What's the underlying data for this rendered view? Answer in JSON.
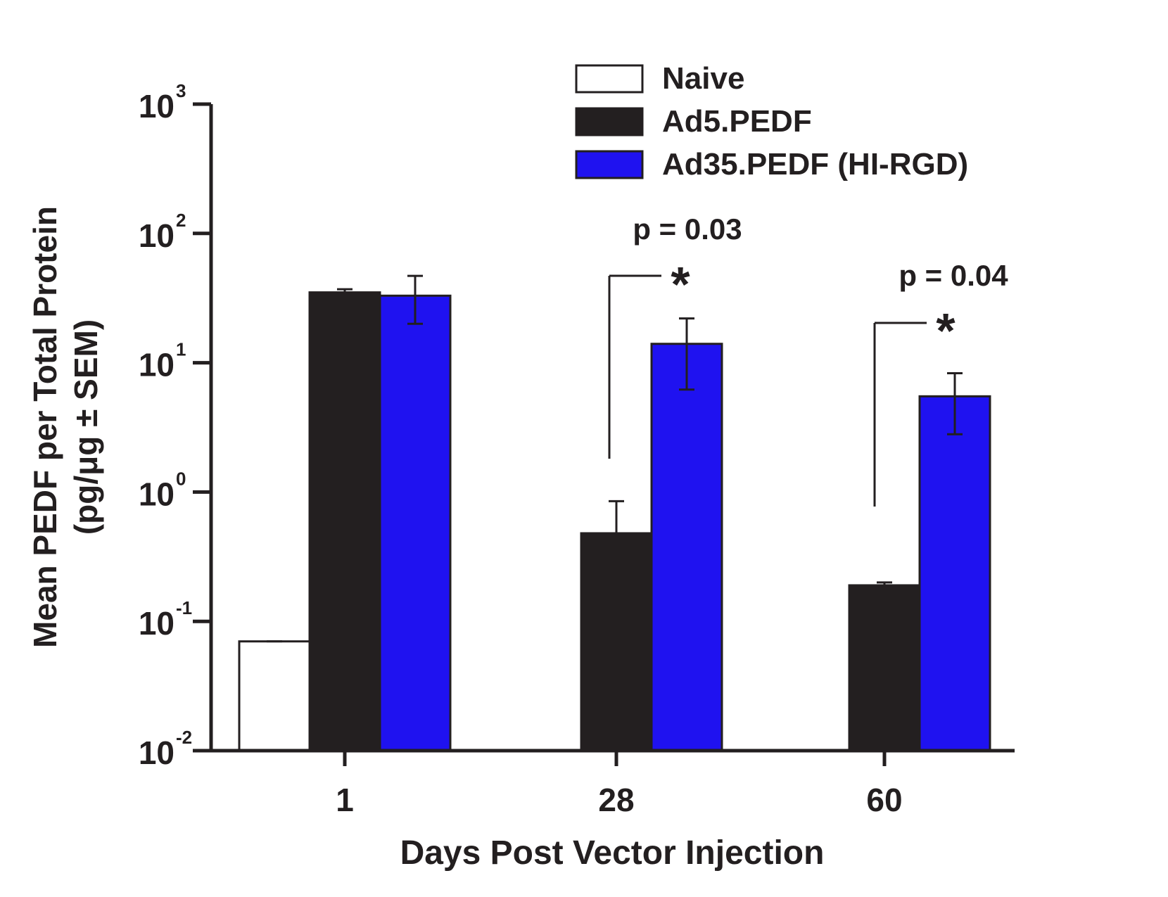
{
  "chart_data": {
    "type": "bar",
    "title": "",
    "xlabel": "Days Post Vector Injection",
    "ylabel": "Mean PEDF per Total Protein",
    "ylabel_line2": "(pg/μg ± SEM)",
    "yscale": "log",
    "ylim": [
      0.01,
      1000
    ],
    "yticks": [
      {
        "value": 0.01,
        "base": "10",
        "exp": "-2"
      },
      {
        "value": 0.1,
        "base": "10",
        "exp": "-1"
      },
      {
        "value": 1,
        "base": "10",
        "exp": "0"
      },
      {
        "value": 10,
        "base": "10",
        "exp": "1"
      },
      {
        "value": 100,
        "base": "10",
        "exp": "2"
      },
      {
        "value": 1000,
        "base": "10",
        "exp": "3"
      }
    ],
    "categories": [
      "1",
      "28",
      "60"
    ],
    "legend_position": "top-right",
    "series": [
      {
        "name": "Naive",
        "color": "#ffffff",
        "values": [
          0.07,
          null,
          null
        ],
        "err_upper": [
          0.07,
          null,
          null
        ],
        "err_lower": [
          0.07,
          null,
          null
        ]
      },
      {
        "name": "Ad5.PEDF",
        "color": "#231f20",
        "values": [
          35,
          0.48,
          0.19
        ],
        "err_upper": [
          37,
          0.85,
          0.2
        ],
        "err_lower": [
          35,
          0.48,
          0.19
        ]
      },
      {
        "name": "Ad35.PEDF (HI-RGD)",
        "color": "#1f12f0",
        "values": [
          33,
          14,
          5.5
        ],
        "err_upper": [
          47,
          22,
          8.3
        ],
        "err_lower": [
          20,
          6.2,
          2.8
        ]
      }
    ],
    "annotations": [
      {
        "text": "p = 0.03",
        "category_index": 1,
        "marker": "*"
      },
      {
        "text": "p = 0.04",
        "category_index": 2,
        "marker": "*"
      }
    ]
  }
}
